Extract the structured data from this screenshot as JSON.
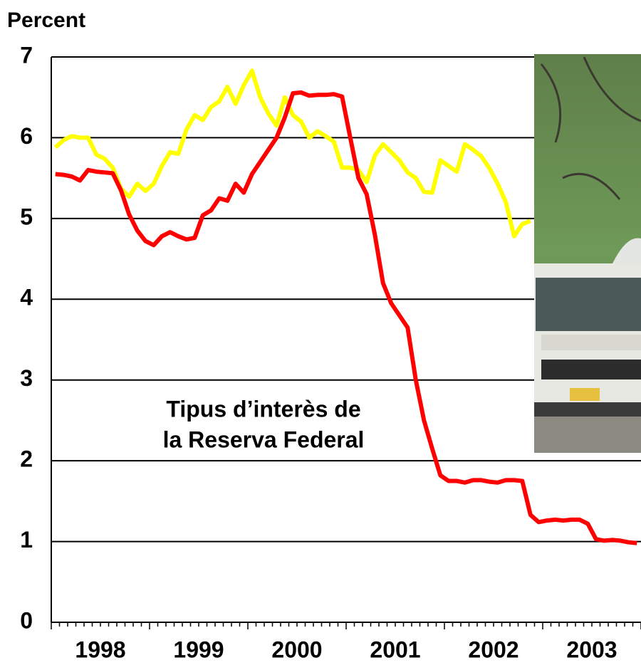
{
  "chart_data": {
    "type": "line",
    "y_label": "Percent",
    "annotation": [
      "Tipus d’interès de",
      "la Reserva Federal"
    ],
    "categories": [
      null,
      null,
      null,
      null,
      null,
      null,
      "1998",
      null,
      null,
      null,
      null,
      null,
      null,
      null,
      null,
      null,
      null,
      null,
      "1999",
      null,
      null,
      null,
      null,
      null,
      null,
      null,
      null,
      null,
      null,
      null,
      "2000",
      null,
      null,
      null,
      null,
      null,
      null,
      null,
      null,
      null,
      null,
      null,
      "2001",
      null,
      null,
      null,
      null,
      null,
      null,
      null,
      null,
      null,
      null,
      null,
      "2002",
      null,
      null,
      null,
      null,
      null,
      null,
      null,
      null,
      null,
      null,
      null,
      "2003",
      null,
      null,
      null,
      null,
      null
    ],
    "series": [
      {
        "color": "#ffff00",
        "values": [
          5.88,
          5.97,
          6.02,
          6.0,
          6.0,
          5.79,
          5.74,
          5.63,
          5.37,
          5.27,
          5.43,
          5.34,
          5.43,
          5.65,
          5.82,
          5.8,
          6.1,
          6.28,
          6.22,
          6.38,
          6.45,
          6.63,
          6.42,
          6.65,
          6.83,
          6.5,
          6.3,
          6.15,
          6.5,
          6.28,
          6.2,
          6.0,
          6.08,
          6.02,
          5.95,
          5.63,
          5.63,
          5.6,
          5.45,
          5.78,
          5.92,
          5.82,
          5.72,
          5.57,
          5.5,
          5.33,
          5.32,
          5.72,
          5.65,
          5.58,
          5.92,
          5.85,
          5.77,
          5.62,
          5.43,
          5.2,
          4.78,
          4.93,
          4.97,
          null,
          null,
          null,
          null,
          null,
          null,
          null,
          null,
          null,
          null,
          null,
          null,
          null
        ]
      },
      {
        "color": "#ff0000",
        "values": [
          5.55,
          5.54,
          5.52,
          5.47,
          5.6,
          5.58,
          5.57,
          5.56,
          5.35,
          5.05,
          4.85,
          4.72,
          4.67,
          4.78,
          4.83,
          4.78,
          4.74,
          4.76,
          5.04,
          5.1,
          5.25,
          5.22,
          5.43,
          5.32,
          5.55,
          5.7,
          5.85,
          6.0,
          6.25,
          6.55,
          6.56,
          6.52,
          6.53,
          6.53,
          6.54,
          6.51,
          6.0,
          5.5,
          5.3,
          4.8,
          4.2,
          3.95,
          3.8,
          3.65,
          3.0,
          2.5,
          2.15,
          1.82,
          1.75,
          1.75,
          1.73,
          1.76,
          1.76,
          1.74,
          1.73,
          1.76,
          1.76,
          1.75,
          1.33,
          1.24,
          1.26,
          1.27,
          1.26,
          1.27,
          1.27,
          1.22,
          1.03,
          1.01,
          1.02,
          1.01,
          0.99,
          0.98
        ]
      }
    ],
    "ylim": [
      0,
      7
    ],
    "yticks": [
      0,
      1,
      2,
      3,
      4,
      5,
      6,
      7
    ],
    "grid": true
  }
}
